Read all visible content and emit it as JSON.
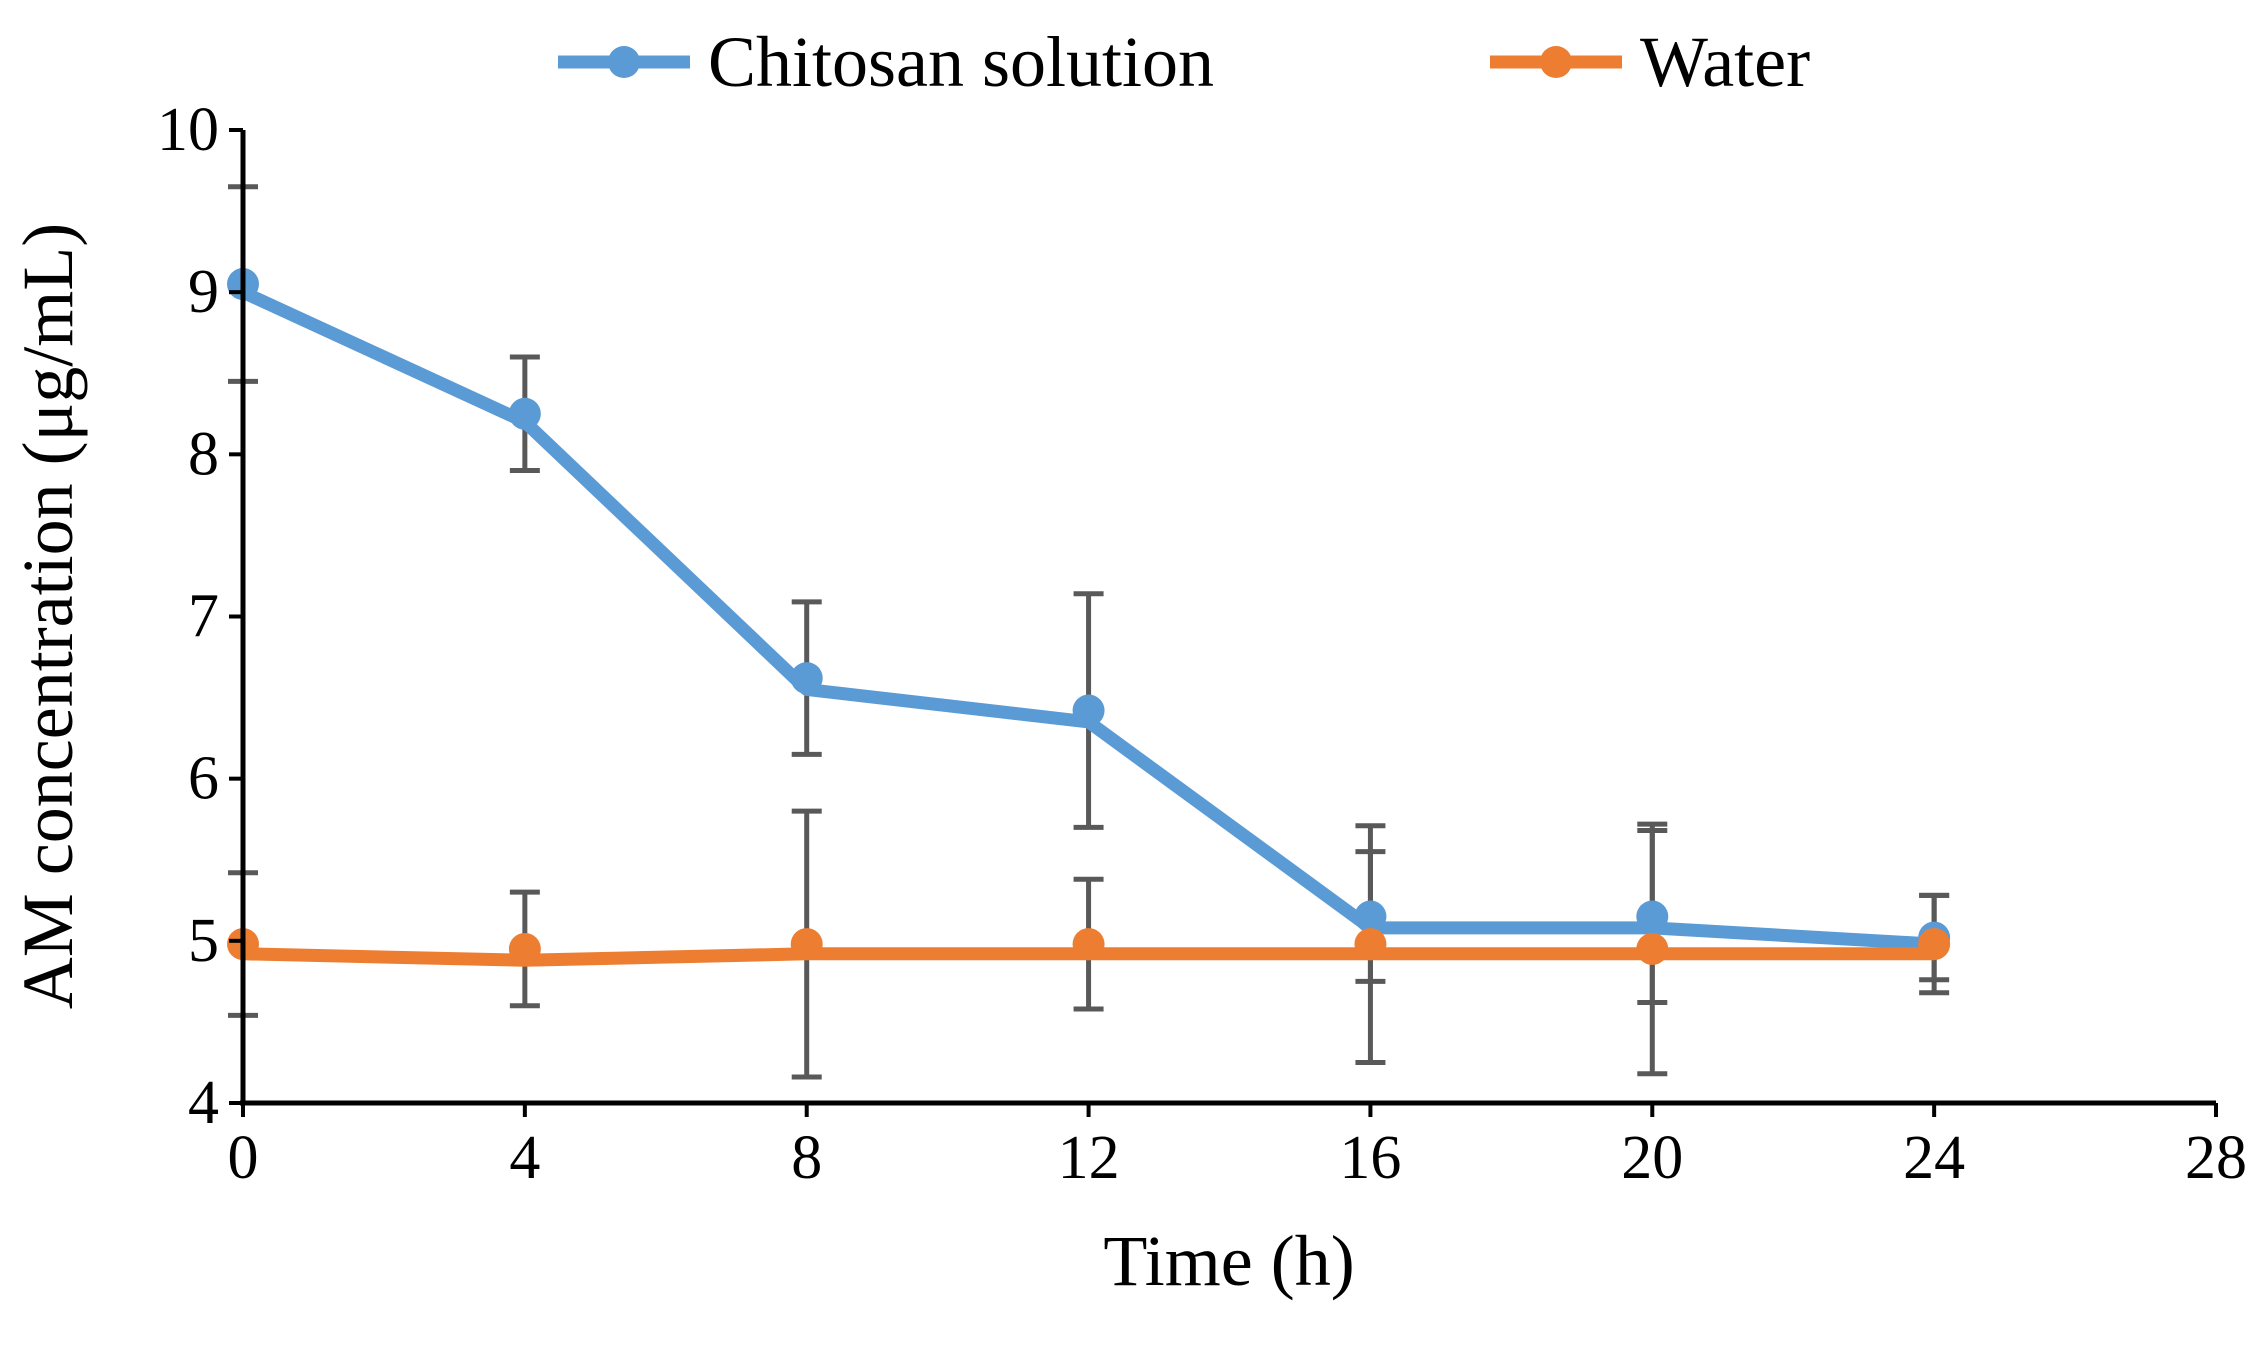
{
  "chart_data": {
    "type": "line",
    "title": "",
    "xlabel": "Time (h)",
    "ylabel": "AM concentration (μg/mL)",
    "xlim": [
      0,
      28
    ],
    "ylim": [
      4,
      10
    ],
    "xticks": [
      0,
      4,
      8,
      12,
      16,
      20,
      24,
      28
    ],
    "yticks": [
      4,
      5,
      6,
      7,
      8,
      9,
      10
    ],
    "xtick_labels": [
      "0",
      "4",
      "8",
      "12",
      "16",
      "20",
      "24",
      "28"
    ],
    "ytick_labels": [
      "4",
      "5",
      "6",
      "7",
      "8",
      "9",
      "10"
    ],
    "grid": false,
    "legend_position": "top-center",
    "series": [
      {
        "name": "Chitosan solution",
        "color": "#5B9BD5",
        "x": [
          0,
          4,
          8,
          12,
          16,
          20,
          24
        ],
        "y": [
          9.05,
          8.25,
          6.62,
          6.42,
          5.15,
          5.15,
          5.02
        ],
        "line_y": [
          9.0,
          8.2,
          6.55,
          6.35,
          5.08,
          5.08,
          4.98
        ],
        "error": [
          0.6,
          0.35,
          0.47,
          0.72,
          0.4,
          0.53,
          0.26
        ]
      },
      {
        "name": "Water",
        "color": "#ED7D31",
        "x": [
          0,
          4,
          8,
          12,
          16,
          20,
          24
        ],
        "y": [
          4.98,
          4.95,
          4.98,
          4.98,
          4.98,
          4.95,
          4.98
        ],
        "line_y": [
          4.92,
          4.88,
          4.92,
          4.92,
          4.92,
          4.92,
          4.92
        ],
        "error": [
          0.44,
          0.35,
          0.82,
          0.4,
          0.73,
          0.77,
          0.3
        ]
      }
    ]
  }
}
